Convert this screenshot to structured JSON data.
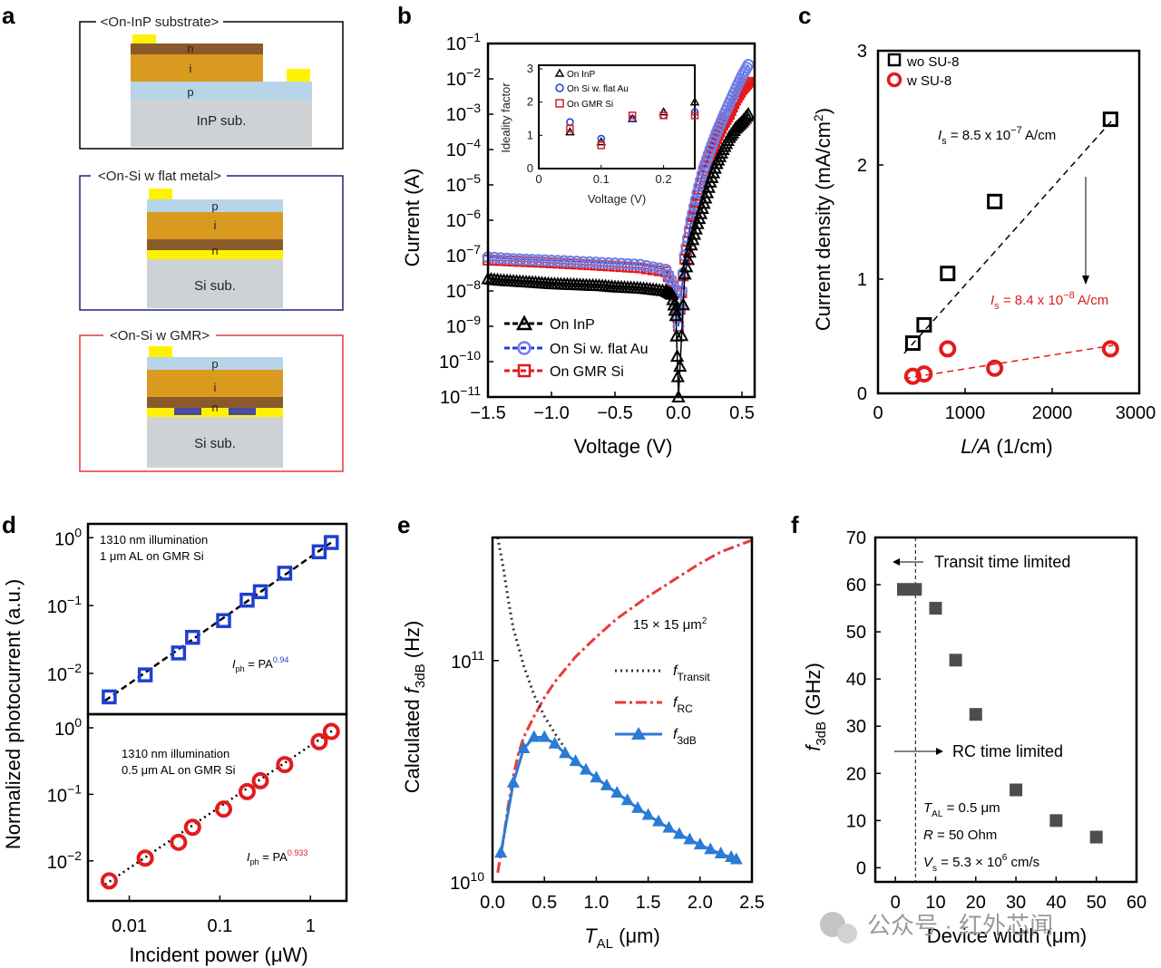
{
  "panels": {
    "a": {
      "label": "a",
      "diagrams": [
        {
          "title": "<On-InP substrate>",
          "layers": [
            "n",
            "i",
            "p"
          ],
          "substrate": "InP sub."
        },
        {
          "title": "<On-Si w flat metal>",
          "layers": [
            "p",
            "i",
            "n"
          ],
          "substrate": "Si sub."
        },
        {
          "title": "<On-Si w GMR>",
          "layers": [
            "p",
            "i",
            "n"
          ],
          "substrate": "Si sub."
        }
      ],
      "colors": {
        "gold": "#d99a1f",
        "brown": "#8b5a2b",
        "yellow": "#fff200",
        "p_layer": "#b8d4e8",
        "substrate": "#cfd2d4",
        "outline1": "#000000",
        "outline2": "#1a237e",
        "outline3": "#e53935",
        "grating": "#4a4aa0"
      }
    },
    "b": {
      "label": "b",
      "xlabel": "Voltage (V)",
      "ylabel": "Current (A)",
      "x_ticks": [
        "−1.5",
        "−1.0",
        "−0.5",
        "0.0",
        "0.5"
      ],
      "y_ticks": [
        {
          "base": "10",
          "exp": "−1"
        },
        {
          "base": "10",
          "exp": "−2"
        },
        {
          "base": "10",
          "exp": "−3"
        },
        {
          "base": "10",
          "exp": "−4"
        },
        {
          "base": "10",
          "exp": "−5"
        },
        {
          "base": "10",
          "exp": "−6"
        },
        {
          "base": "10",
          "exp": "−7"
        },
        {
          "base": "10",
          "exp": "−8"
        },
        {
          "base": "10",
          "exp": "−9"
        },
        {
          "base": "10",
          "exp": "−10"
        },
        {
          "base": "10",
          "exp": "−11"
        }
      ],
      "legend": [
        "On InP",
        "On Si w. flat Au",
        "On GMR Si"
      ],
      "inset": {
        "xlabel": "Voltage (V)",
        "ylabel": "Ideality factor",
        "x_ticks": [
          "0",
          "0.1",
          "0.2"
        ],
        "y_ticks": [
          "0",
          "1",
          "2",
          "3"
        ],
        "legend": [
          "On InP",
          "On Si w. flat Au",
          "On GMR Si"
        ]
      }
    },
    "c": {
      "label": "c",
      "xlabel_italic": "L/A",
      "xlabel_rest": " (1/cm)",
      "ylabel_main": "Current density (mA/cm",
      "ylabel_sup": "2",
      "ylabel_end": ")",
      "x_ticks": [
        "0",
        "1000",
        "2000",
        "3000"
      ],
      "y_ticks": [
        "0",
        "1",
        "2",
        "3"
      ],
      "legend": [
        "wo SU-8",
        "w SU-8"
      ],
      "ann_black": {
        "sym": "I",
        "sub": "s",
        "text": " = 8.5 x 10",
        "exp": "−7",
        "unit": " A/cm"
      },
      "ann_red": {
        "sym": "I",
        "sub": "s",
        "text": " = 8.4 x 10",
        "exp": "−8",
        "unit": " A/cm"
      }
    },
    "d": {
      "label": "d",
      "ylabel": "Normalized photocurrent (a.u.)",
      "xlabel_pre": "Incident power (",
      "xlabel_mu": "μ",
      "xlabel_post": "W)",
      "x_ticks": [
        "0.01",
        "0.1",
        "1"
      ],
      "y_ticks": [
        {
          "base": "10",
          "exp": "0"
        },
        {
          "base": "10",
          "exp": "−1"
        },
        {
          "base": "10",
          "exp": "−2"
        }
      ],
      "top_note1": "1310 nm illumination",
      "top_note2": "1 μm AL on GMR Si",
      "top_law": {
        "sym": "I",
        "sub": "ph",
        "eq": " = PA",
        "exp": "0.94"
      },
      "bot_note1": "1310 nm illumination",
      "bot_note2": "0.5 μm AL on GMR Si",
      "bot_law": {
        "sym": "I",
        "sub": "ph",
        "eq": " = PA",
        "exp": "0.933"
      }
    },
    "e": {
      "label": "e",
      "ylabel_pre": "Calculated ",
      "ylabel_sym": "f",
      "ylabel_sub": "3dB",
      "ylabel_post": " (Hz)",
      "xlabel_sym": "T",
      "xlabel_sub": "AL",
      "xlabel_post": " (μm)",
      "x_ticks": [
        "0.0",
        "0.5",
        "1.0",
        "1.5",
        "2.0",
        "2.5"
      ],
      "y_ticks": [
        {
          "base": "10",
          "exp": "11"
        },
        {
          "base": "10",
          "exp": "10"
        }
      ],
      "area": {
        "text": "15 × 15 μm",
        "sup": "2"
      },
      "legend": [
        {
          "sym": "f",
          "sub": "Transit"
        },
        {
          "sym": "f",
          "sub": "RC"
        },
        {
          "sym": "f",
          "sub": "3dB"
        }
      ]
    },
    "f": {
      "label": "f",
      "ylabel_sym": "f",
      "ylabel_sub": "3dB",
      "ylabel_post": " (GHz)",
      "xlabel": "Device width (μm)",
      "x_ticks": [
        "0",
        "10",
        "20",
        "30",
        "40",
        "50",
        "60"
      ],
      "y_ticks": [
        "0",
        "10",
        "20",
        "30",
        "40",
        "50",
        "60",
        "70"
      ],
      "ann_transit": "Transit time limited",
      "ann_rc": "RC time limited",
      "params": [
        {
          "sym": "T",
          "sub": "AL",
          "text": " = 0.5 μm",
          "sup": ""
        },
        {
          "sym": "R",
          "sub": "",
          "text": " = 50 Ohm",
          "sup": ""
        },
        {
          "sym": "V",
          "sub": "s",
          "text": " = 5.3 × 10",
          "sup": "6",
          "tail": " cm/s"
        }
      ]
    }
  },
  "watermark": "公众号 · 红外芯闻",
  "colors": {
    "black": "#000000",
    "blue": "#1f3fd1",
    "red": "#e41a1c",
    "tri_blue": "#2b7bd6",
    "rc_red": "#e83a3a",
    "gray_sq": "#4d4d4d"
  },
  "chart_data": [
    {
      "panel": "b",
      "type": "line",
      "xlabel": "Voltage (V)",
      "ylabel": "Current (A)",
      "xlim": [
        -1.5,
        0.6
      ],
      "ylim": [
        1e-11,
        0.1
      ],
      "yscale": "log",
      "series": [
        {
          "name": "On InP",
          "x": [
            -1.5,
            -1.4,
            -1.3,
            -1.2,
            -1.1,
            -1.0,
            -0.9,
            -0.8,
            -0.7,
            -0.6,
            -0.5,
            -0.4,
            -0.3,
            -0.2,
            -0.1,
            -0.05,
            -0.02,
            0.0,
            0.05,
            0.1,
            0.15,
            0.2,
            0.25,
            0.3,
            0.35,
            0.4,
            0.45,
            0.5,
            0.55
          ],
          "y": [
            2.2e-08,
            2e-08,
            1.9e-08,
            1.8e-08,
            1.7e-08,
            1.6e-08,
            1.55e-08,
            1.5e-08,
            1.45e-08,
            1.4e-08,
            1.3e-08,
            1.25e-08,
            1.2e-08,
            1.1e-08,
            1e-08,
            8e-09,
            2e-09,
            1e-11,
            3e-08,
            2e-07,
            8e-07,
            3e-06,
            1.2e-05,
            4e-05,
            0.0001,
            0.00022,
            0.0004,
            0.0006,
            0.001
          ]
        },
        {
          "name": "On Si w. flat Au",
          "x": [
            -1.5,
            -1.3,
            -1.1,
            -0.9,
            -0.7,
            -0.5,
            -0.3,
            -0.1,
            -0.02,
            0.0,
            0.05,
            0.1,
            0.15,
            0.2,
            0.25,
            0.3,
            0.35,
            0.4,
            0.45,
            0.5,
            0.55
          ],
          "y": [
            9e-08,
            8e-08,
            7.5e-08,
            7e-08,
            6.5e-08,
            6e-08,
            5.5e-08,
            4e-08,
            1e-08,
            1e-09,
            1e-07,
            1e-06,
            6e-06,
            3e-05,
            0.0001,
            0.0003,
            0.0008,
            0.002,
            0.005,
            0.012,
            0.025
          ]
        },
        {
          "name": "On GMR Si",
          "x": [
            -1.5,
            -1.3,
            -1.1,
            -0.9,
            -0.7,
            -0.5,
            -0.3,
            -0.1,
            -0.02,
            0.0,
            0.05,
            0.1,
            0.15,
            0.2,
            0.25,
            0.3,
            0.35,
            0.4,
            0.45,
            0.5,
            0.55
          ],
          "y": [
            7.5e-08,
            7e-08,
            6.5e-08,
            6e-08,
            5.5e-08,
            5e-08,
            4.5e-08,
            3.5e-08,
            1e-08,
            1e-09,
            8e-08,
            8e-07,
            5e-06,
            2.5e-05,
            8e-05,
            0.0002,
            0.0005,
            0.001,
            0.0025,
            0.005,
            0.008
          ]
        }
      ],
      "inset": {
        "type": "scatter",
        "xlim": [
          0,
          0.25
        ],
        "ylim": [
          0,
          3
        ],
        "series": [
          {
            "name": "On InP",
            "x": [
              0.05,
              0.1,
              0.15,
              0.2,
              0.25
            ],
            "y": [
              1.1,
              0.8,
              1.5,
              1.7,
              2.0
            ]
          },
          {
            "name": "On Si w. flat Au",
            "x": [
              0.05,
              0.1,
              0.15,
              0.2,
              0.25
            ],
            "y": [
              1.4,
              0.9,
              1.5,
              1.6,
              1.7
            ]
          },
          {
            "name": "On GMR Si",
            "x": [
              0.05,
              0.1,
              0.15,
              0.2,
              0.25
            ],
            "y": [
              1.2,
              0.7,
              1.6,
              1.6,
              1.6
            ]
          }
        ]
      }
    },
    {
      "panel": "c",
      "type": "scatter",
      "xlim": [
        0,
        3000
      ],
      "ylim": [
        0,
        3
      ],
      "series": [
        {
          "name": "wo SU-8",
          "x": [
            400,
            530,
            800,
            1340,
            2670
          ],
          "y": [
            0.44,
            0.6,
            1.05,
            1.68,
            2.4
          ]
        },
        {
          "name": "w SU-8",
          "x": [
            400,
            530,
            800,
            1340,
            2670
          ],
          "y": [
            0.15,
            0.17,
            0.39,
            0.22,
            0.39
          ]
        }
      ],
      "fits": [
        {
          "series": "wo SU-8",
          "x": [
            300,
            2700
          ],
          "y": [
            0.35,
            2.4
          ]
        },
        {
          "series": "w SU-8",
          "x": [
            300,
            2700
          ],
          "y": [
            0.13,
            0.42
          ]
        }
      ]
    },
    {
      "panel": "d-top",
      "type": "scatter",
      "xscale": "log",
      "yscale": "log",
      "xlim": [
        0.0035,
        2.5
      ],
      "ylim": [
        0.0025,
        1.6
      ],
      "series": [
        {
          "name": "1 μm AL on GMR Si",
          "x": [
            0.006,
            0.015,
            0.035,
            0.05,
            0.11,
            0.2,
            0.28,
            0.52,
            1.25,
            1.7
          ],
          "y": [
            0.0045,
            0.0095,
            0.02,
            0.034,
            0.06,
            0.12,
            0.16,
            0.3,
            0.62,
            0.85
          ]
        }
      ]
    },
    {
      "panel": "d-bottom",
      "type": "scatter",
      "xscale": "log",
      "yscale": "log",
      "xlim": [
        0.0035,
        2.5
      ],
      "ylim": [
        0.0025,
        1.6
      ],
      "series": [
        {
          "name": "0.5 μm AL on GMR Si",
          "x": [
            0.006,
            0.015,
            0.035,
            0.05,
            0.11,
            0.2,
            0.28,
            0.52,
            1.25,
            1.7
          ],
          "y": [
            0.005,
            0.011,
            0.019,
            0.032,
            0.06,
            0.11,
            0.16,
            0.28,
            0.62,
            0.88
          ]
        }
      ]
    },
    {
      "panel": "e",
      "type": "line",
      "xlim": [
        0,
        2.5
      ],
      "ylim": [
        10000000000.0,
        360000000000.0
      ],
      "yscale": "log",
      "series": [
        {
          "name": "f Transit",
          "x": [
            0.05,
            0.1,
            0.15,
            0.2,
            0.3,
            0.4,
            0.5,
            0.6,
            0.7
          ],
          "y": [
            360000000000.0,
            270000000000.0,
            190000000000.0,
            140000000000.0,
            95000000000.0,
            70000000000.0,
            56000000000.0,
            47000000000.0,
            40000000000.0
          ]
        },
        {
          "name": "f RC",
          "x": [
            0.05,
            0.1,
            0.15,
            0.2,
            0.25,
            0.3,
            0.4,
            0.5,
            0.6,
            0.8,
            1.0,
            1.2,
            1.5,
            1.8,
            2.0,
            2.2,
            2.5
          ],
          "y": [
            11000000000.0,
            15000000000.0,
            22000000000.0,
            30000000000.0,
            38000000000.0,
            45000000000.0,
            56000000000.0,
            68000000000.0,
            80000000000.0,
            104000000000.0,
            128000000000.0,
            155000000000.0,
            195000000000.0,
            240000000000.0,
            275000000000.0,
            310000000000.0,
            350000000000.0
          ]
        },
        {
          "name": "f 3dB",
          "x": [
            0.08,
            0.2,
            0.3,
            0.4,
            0.5,
            0.6,
            0.7,
            0.8,
            0.9,
            1.0,
            1.1,
            1.2,
            1.3,
            1.4,
            1.5,
            1.6,
            1.7,
            1.8,
            1.9,
            2.0,
            2.1,
            2.2,
            2.3,
            2.35
          ],
          "y": [
            13500000000.0,
            28000000000.0,
            40000000000.0,
            45000000000.0,
            45000000000.0,
            42000000000.0,
            38000000000.0,
            35000000000.0,
            32000000000.0,
            29500000000.0,
            27200000000.0,
            25200000000.0,
            23300000000.0,
            21500000000.0,
            20000000000.0,
            18700000000.0,
            17500000000.0,
            16400000000.0,
            15500000000.0,
            14700000000.0,
            14000000000.0,
            13400000000.0,
            12900000000.0,
            12600000000.0
          ]
        }
      ]
    },
    {
      "panel": "f",
      "type": "scatter",
      "xlim": [
        -5,
        60
      ],
      "ylim": [
        -3,
        70
      ],
      "series": [
        {
          "name": "f3dB",
          "x": [
            2,
            5,
            10,
            15,
            20,
            30,
            40,
            50
          ],
          "y": [
            59,
            59,
            55,
            44,
            32.5,
            16.5,
            10,
            6.5
          ]
        }
      ],
      "vline_x": 5
    }
  ]
}
